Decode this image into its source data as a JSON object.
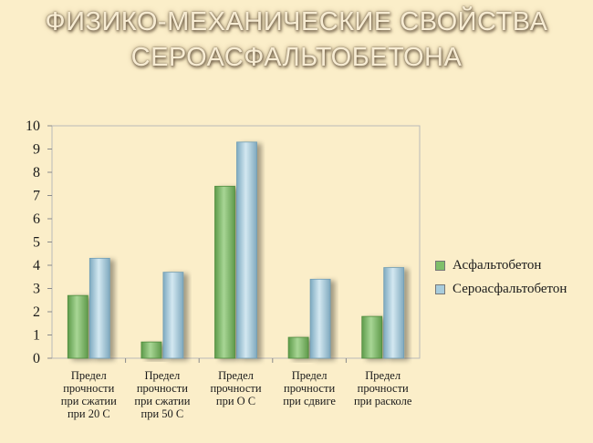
{
  "title_line1": "ФИЗИКО-МЕХАНИЧЕСКИЕ СВОЙСТВА",
  "title_line2": "СЕРОАСФАЛЬТОБЕТОНА",
  "chart_data": {
    "type": "bar",
    "categories": [
      [
        "Предел",
        "прочности",
        "при сжатии",
        "при 20 С"
      ],
      [
        "Предел",
        "прочности",
        "при сжатии",
        "при 50 С"
      ],
      [
        "Предел",
        "прочности",
        "при О С"
      ],
      [
        "Предел",
        "прочности",
        "при сдвиге"
      ],
      [
        "Предел",
        "прочности",
        "при расколе"
      ]
    ],
    "series": [
      {
        "name": "Асфальтобетон",
        "values": [
          2.7,
          0.7,
          7.4,
          0.9,
          1.8
        ],
        "color": "#7fbf6a",
        "dark": "#4f8c3e"
      },
      {
        "name": "Сероасфальтобетон",
        "values": [
          4.3,
          3.7,
          9.3,
          3.4,
          3.9
        ],
        "color": "#a8ccdc",
        "dark": "#6f9cb3"
      }
    ],
    "ylim": [
      0,
      10
    ],
    "yticks": [
      "0",
      "1",
      "2",
      "3",
      "4",
      "5",
      "6",
      "7",
      "8",
      "9",
      "10"
    ],
    "legend_position": "right",
    "grid": false
  }
}
